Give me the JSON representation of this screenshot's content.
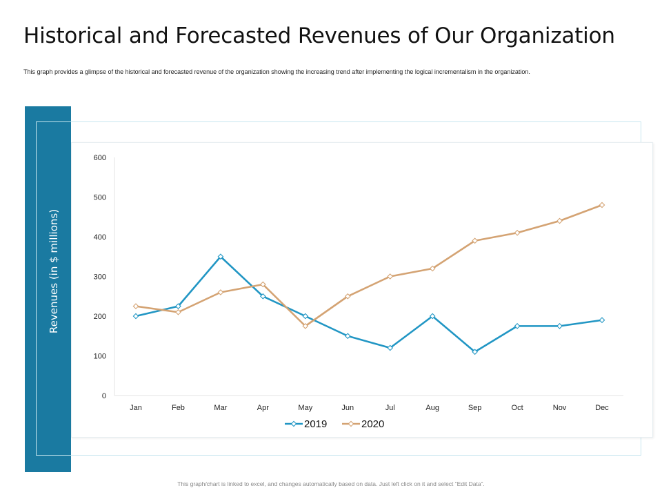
{
  "page": {
    "title": "Historical and Forecasted Revenues of Our Organization",
    "subtitle": "This graph provides a glimpse of the historical and forecasted revenue of the organization showing the increasing trend after implementing the logical incrementalism in the organization.",
    "footer": "This graph/chart is linked to excel, and changes automatically based on data. Just left click on it and select “Edit Data”."
  },
  "chart_data": {
    "type": "line",
    "title": "",
    "xlabel": "",
    "ylabel": "Revenues (in $ millions)",
    "categories": [
      "Jan",
      "Feb",
      "Mar",
      "Apr",
      "May",
      "Jun",
      "Jul",
      "Aug",
      "Sep",
      "Oct",
      "Nov",
      "Dec"
    ],
    "y_ticks": [
      "0",
      "100",
      "200",
      "300",
      "400",
      "500",
      "600"
    ],
    "ylim": [
      0,
      600
    ],
    "grid": false,
    "legend_position": "bottom",
    "series": [
      {
        "name": "2019",
        "color": "#2196c4",
        "values": [
          200,
          225,
          350,
          250,
          200,
          150,
          120,
          200,
          110,
          175,
          175,
          190
        ]
      },
      {
        "name": "2020",
        "color": "#d4a373",
        "values": [
          225,
          210,
          260,
          280,
          175,
          250,
          300,
          320,
          390,
          410,
          440,
          480
        ]
      }
    ]
  }
}
